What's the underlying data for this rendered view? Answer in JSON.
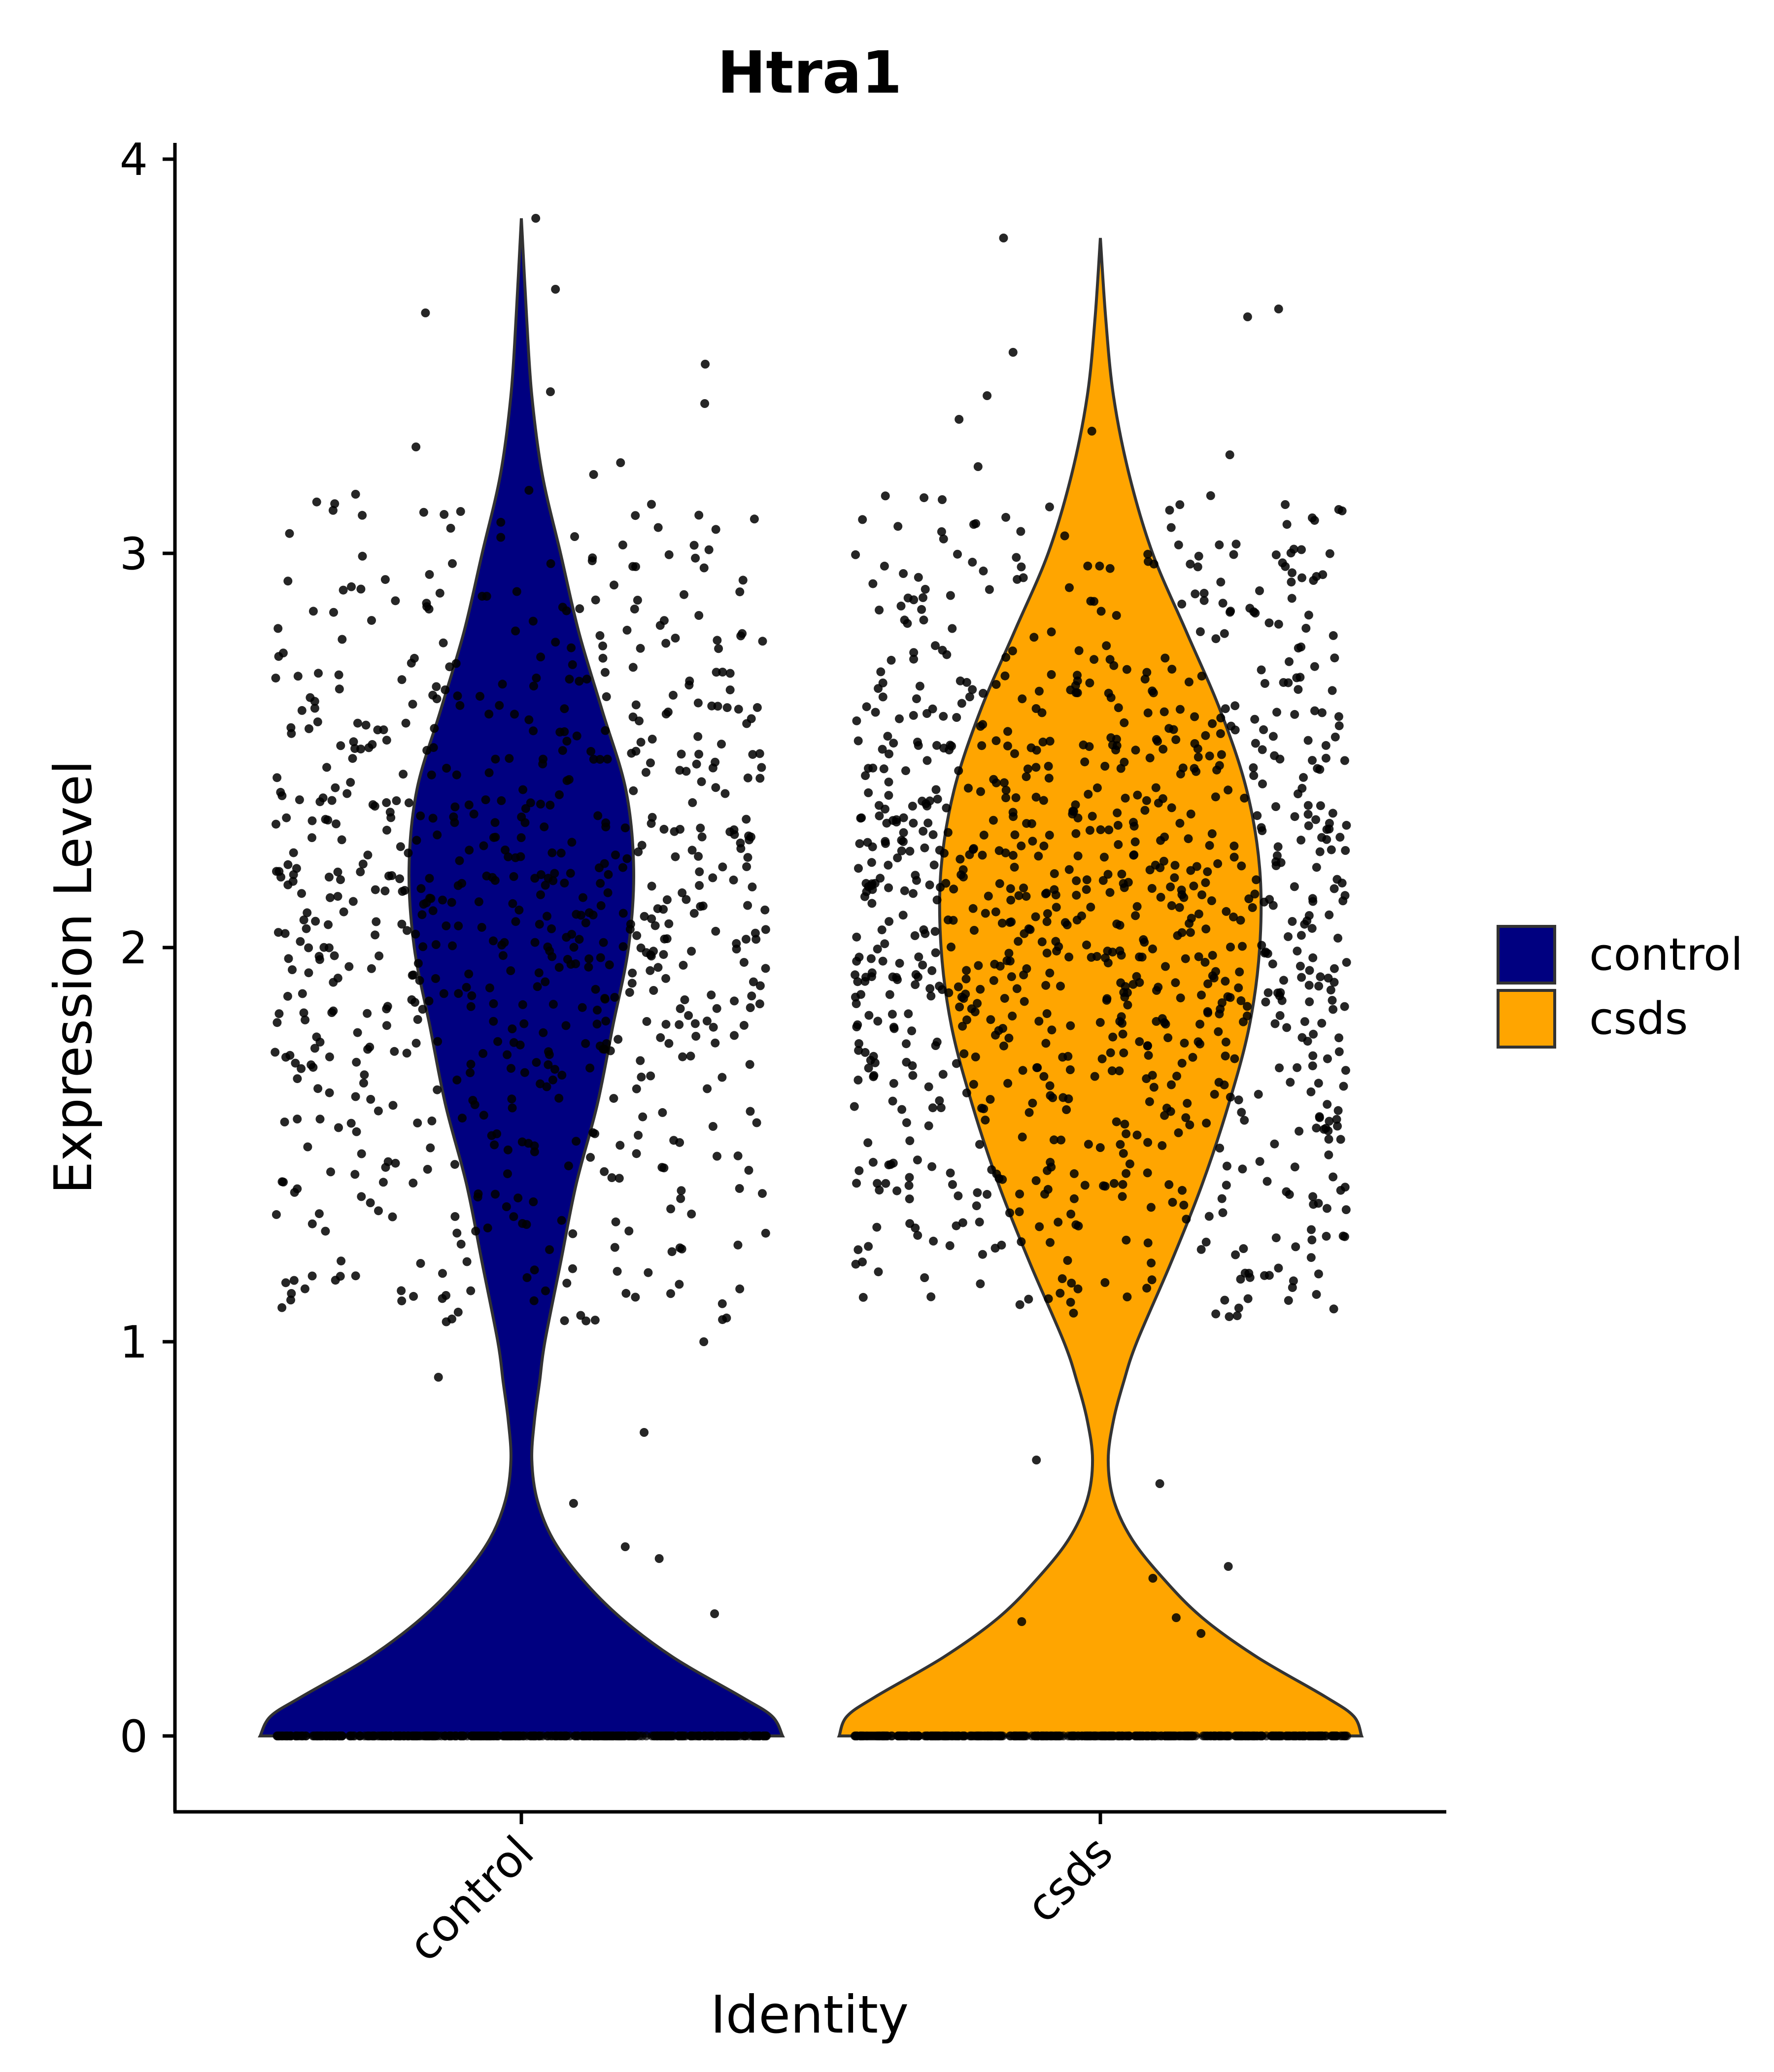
{
  "chart_data": {
    "type": "violin",
    "title": "Htra1",
    "xlabel": "Identity",
    "ylabel": "Expression Level",
    "ylim": [
      -0.19,
      4.05
    ],
    "yticks": [
      "0",
      "1",
      "2",
      "3",
      "4"
    ],
    "categories": [
      "control",
      "csds"
    ],
    "series": [
      {
        "name": "control",
        "color": "#000080",
        "max": 3.85,
        "density": [
          [
            0.0,
            1.0
          ],
          [
            0.05,
            0.96
          ],
          [
            0.1,
            0.84
          ],
          [
            0.2,
            0.58
          ],
          [
            0.3,
            0.38
          ],
          [
            0.4,
            0.23
          ],
          [
            0.5,
            0.12
          ],
          [
            0.6,
            0.06
          ],
          [
            0.7,
            0.04
          ],
          [
            0.8,
            0.05
          ],
          [
            0.9,
            0.07
          ],
          [
            1.0,
            0.09
          ],
          [
            1.2,
            0.15
          ],
          [
            1.4,
            0.21
          ],
          [
            1.6,
            0.29
          ],
          [
            1.8,
            0.35
          ],
          [
            2.0,
            0.41
          ],
          [
            2.2,
            0.43
          ],
          [
            2.4,
            0.4
          ],
          [
            2.6,
            0.31
          ],
          [
            2.8,
            0.22
          ],
          [
            3.0,
            0.15
          ],
          [
            3.2,
            0.08
          ],
          [
            3.4,
            0.04
          ],
          [
            3.6,
            0.02
          ],
          [
            3.85,
            0.0
          ]
        ],
        "points": {
          "zero_count": 420,
          "nonzero_count": 760,
          "mean": 2.05,
          "sd": 0.55,
          "low_outliers": [
            0.31,
            0.45,
            0.48,
            0.59,
            0.77,
            0.91,
            1.0
          ],
          "high_outliers": [
            3.85,
            3.67,
            3.61,
            3.48,
            3.41,
            3.38,
            3.27,
            3.23,
            3.2,
            3.16,
            3.15
          ]
        }
      },
      {
        "name": "csds",
        "color": "#FFA500",
        "max": 3.8,
        "density": [
          [
            0.0,
            1.0
          ],
          [
            0.05,
            0.97
          ],
          [
            0.1,
            0.86
          ],
          [
            0.2,
            0.6
          ],
          [
            0.3,
            0.39
          ],
          [
            0.4,
            0.24
          ],
          [
            0.5,
            0.12
          ],
          [
            0.6,
            0.05
          ],
          [
            0.7,
            0.03
          ],
          [
            0.8,
            0.05
          ],
          [
            0.9,
            0.09
          ],
          [
            1.0,
            0.14
          ],
          [
            1.2,
            0.27
          ],
          [
            1.4,
            0.39
          ],
          [
            1.6,
            0.49
          ],
          [
            1.8,
            0.57
          ],
          [
            2.0,
            0.61
          ],
          [
            2.2,
            0.61
          ],
          [
            2.4,
            0.56
          ],
          [
            2.6,
            0.46
          ],
          [
            2.8,
            0.33
          ],
          [
            3.0,
            0.2
          ],
          [
            3.2,
            0.11
          ],
          [
            3.4,
            0.05
          ],
          [
            3.6,
            0.02
          ],
          [
            3.8,
            0.0
          ]
        ],
        "points": {
          "zero_count": 420,
          "nonzero_count": 1040,
          "mean": 2.05,
          "sd": 0.55,
          "low_outliers": [
            0.26,
            0.29,
            0.3,
            0.4,
            0.43,
            0.64,
            0.7
          ],
          "high_outliers": [
            3.8,
            3.62,
            3.6,
            3.51,
            3.4,
            3.34,
            3.31,
            3.25,
            3.22
          ]
        }
      }
    ],
    "legend": {
      "position": "right",
      "entries": [
        {
          "label": "control",
          "color": "#000080"
        },
        {
          "label": "csds",
          "color": "#FFA500"
        }
      ]
    },
    "grid": false
  }
}
